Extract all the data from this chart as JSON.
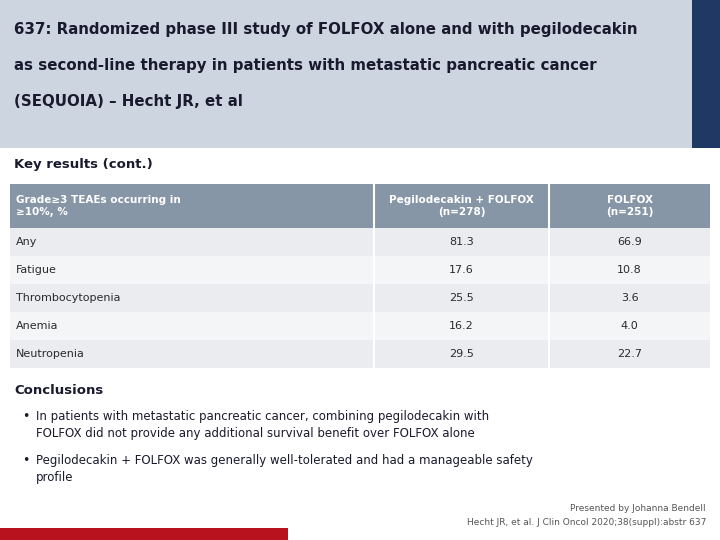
{
  "title_line1": "637: Randomized phase III study of FOLFOX alone and with pegilodecakin",
  "title_line2": "as second-line therapy in patients with metastatic pancreatic cancer",
  "title_line3": "(SEQUOIA) – Hecht JR, et al",
  "title_bg_color": "#cdd5e0",
  "title_sidebar_color": "#1f3864",
  "section_label": "Key results (cont.)",
  "table_header": [
    "Grade≥3 TEAEs occurring in\n≥10%, %",
    "Pegilodecakin + FOLFOX\n(n=278)",
    "FOLFOX\n(n=251)"
  ],
  "table_rows": [
    [
      "Any",
      "81.3",
      "66.9"
    ],
    [
      "Fatigue",
      "17.6",
      "10.8"
    ],
    [
      "Thrombocytopenia",
      "25.5",
      "3.6"
    ],
    [
      "Anemia",
      "16.2",
      "4.0"
    ],
    [
      "Neutropenia",
      "29.5",
      "22.7"
    ]
  ],
  "header_bg": "#8696a7",
  "row_bg_even": "#eaecf0",
  "row_bg_odd": "#f4f5f7",
  "header_text_color": "#ffffff",
  "row_text_color": "#2a2a2a",
  "conclusions_title": "Conclusions",
  "bullet1": "In patients with metastatic pancreatic cancer, combining pegilodecakin with\nFOLFOX did not provide any additional survival benefit over FOLFOX alone",
  "bullet2": "Pegilodecakin + FOLFOX was generally well-tolerated and had a manageable safety\nprofile",
  "footer1": "Presented by Johanna Bendell",
  "footer2": "Hecht JR, et al. J Clin Oncol 2020;38(suppl):abstr 637",
  "bottom_bar_color": "#b8121e",
  "bg_color": "#ffffff",
  "title_text_color": "#1a1a2e"
}
